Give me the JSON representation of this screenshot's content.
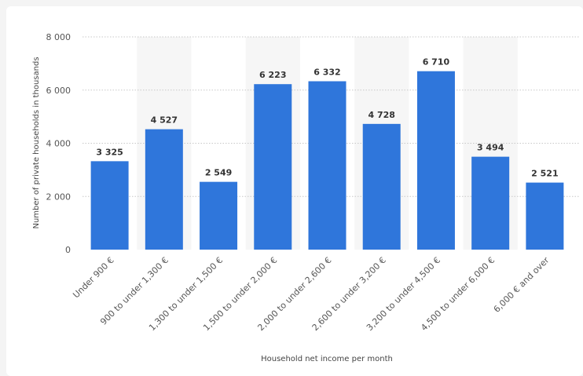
{
  "chart_data": {
    "type": "bar",
    "categories": [
      "Under 900 €",
      "900 to under 1,300 €",
      "1,300 to under 1,500 €",
      "1,500 to under 2,000 €",
      "2,000 to under 2,600 €",
      "2,600 to under 3,200 €",
      "3,200 to under 4,500 €",
      "4,500 to under 6,000 €",
      "6,000 € and over"
    ],
    "values": [
      3325,
      4527,
      2549,
      6223,
      6332,
      4728,
      6710,
      3494,
      2521
    ],
    "value_labels": [
      "3 325",
      "4 527",
      "2 549",
      "6 223",
      "6 332",
      "4 728",
      "6 710",
      "3 494",
      "2 521"
    ],
    "yticks": [
      0,
      2000,
      4000,
      6000,
      8000
    ],
    "ytick_labels": [
      "0",
      "2 000",
      "4 000",
      "6 000",
      "8 000"
    ],
    "ylim": [
      0,
      8000
    ],
    "xlabel": "Household net income per month",
    "ylabel": "Number of private households in thousands",
    "grid": true,
    "bar_color": "#2f76db",
    "band_color": "#f6f6f6",
    "grid_color": "#c8c8c8"
  }
}
